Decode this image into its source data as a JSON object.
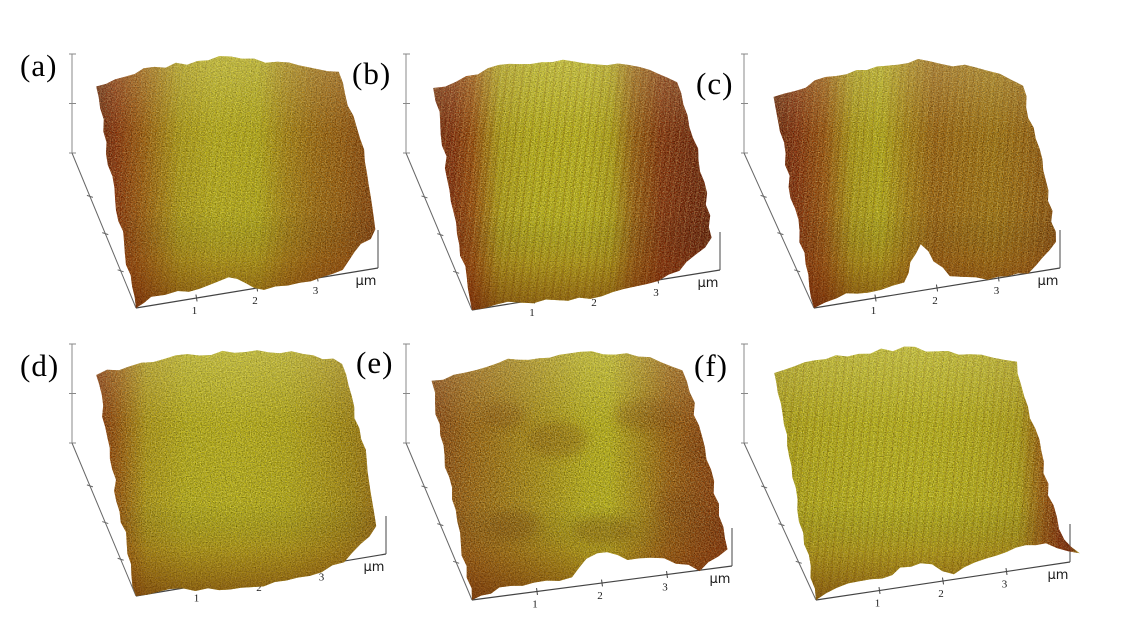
{
  "figure": {
    "description": "Six 3D AFM surface topography images labeled (a)-(f), arranged in a 2x3 grid, rendered with a gold/amber height colormap on a white background",
    "grid": {
      "rows": 2,
      "cols": 3
    }
  },
  "axes": {
    "x_tick_labels": [
      "1",
      "2",
      "3"
    ],
    "x_unit": "µm",
    "z_tick_count": 3,
    "z_tick_labels": []
  },
  "palette": {
    "background": "#ffffff",
    "deep_maroon": "#6e1a00",
    "dark_red": "#8f2600",
    "red_orange": "#a84a02",
    "brown": "#a86506",
    "olive": "#b99a0a",
    "yellow": "#cdc113",
    "bright_yellow": "#d2c913",
    "axis_line": "#555555",
    "text": "#111111"
  },
  "panels": [
    {
      "id": "a",
      "label": "(a)",
      "texture": "smooth",
      "stripes_opacity": 0.08,
      "description": "broad yellow plateau, dark red lower-left edge, orange right slope, notched front edge",
      "gradient": [
        [
          0,
          "#6e1a00"
        ],
        [
          0.07,
          "#962c00"
        ],
        [
          0.16,
          "#ab5a04"
        ],
        [
          0.3,
          "#c2ab0e"
        ],
        [
          0.42,
          "#cdc113"
        ],
        [
          0.58,
          "#c9bd10"
        ],
        [
          0.68,
          "#b98e0a"
        ],
        [
          0.78,
          "#ad6f06"
        ],
        [
          0.88,
          "#a55c04"
        ],
        [
          1,
          "#8f3c02"
        ]
      ]
    },
    {
      "id": "b",
      "label": "(b)",
      "texture": "striated",
      "stripes_opacity": 0.2,
      "description": "bright yellow striated plateau with dark red steep edges on both left and right sides",
      "gradient": [
        [
          0,
          "#7c1e00"
        ],
        [
          0.07,
          "#8f2600"
        ],
        [
          0.14,
          "#a84a02"
        ],
        [
          0.24,
          "#c2ae0e"
        ],
        [
          0.36,
          "#cdc411"
        ],
        [
          0.55,
          "#d0c713"
        ],
        [
          0.64,
          "#c4b30e"
        ],
        [
          0.72,
          "#a86206"
        ],
        [
          0.82,
          "#8f2a00"
        ],
        [
          0.92,
          "#7c1e00"
        ],
        [
          1,
          "#701a00"
        ]
      ]
    },
    {
      "id": "c",
      "label": "(c)",
      "texture": "striated",
      "stripes_opacity": 0.16,
      "description": "dark red left edge, yellow ridge, central brown groove with notched front edge, orange right side",
      "gradient": [
        [
          0,
          "#701a00"
        ],
        [
          0.08,
          "#8f2600"
        ],
        [
          0.18,
          "#a85204"
        ],
        [
          0.28,
          "#c0a90d"
        ],
        [
          0.38,
          "#c9bd10"
        ],
        [
          0.47,
          "#b98c0a"
        ],
        [
          0.57,
          "#a96506"
        ],
        [
          0.66,
          "#ad7007"
        ],
        [
          0.78,
          "#b07a08"
        ],
        [
          0.9,
          "#a86808"
        ],
        [
          1,
          "#964e04"
        ]
      ]
    },
    {
      "id": "d",
      "label": "(d)",
      "texture": "smooth",
      "stripes_opacity": 0,
      "description": "smooth uniform yellow plateau, dark red lower-left corner, gently sloping right side",
      "gradient": [
        [
          0,
          "#8f2a00"
        ],
        [
          0.08,
          "#a85a04"
        ],
        [
          0.18,
          "#c0a40d"
        ],
        [
          0.32,
          "#cabf11"
        ],
        [
          0.5,
          "#cdc312"
        ],
        [
          0.68,
          "#c8bb10"
        ],
        [
          0.82,
          "#bda30c"
        ],
        [
          0.92,
          "#b08c08"
        ],
        [
          1,
          "#a87406"
        ]
      ]
    },
    {
      "id": "e",
      "label": "(e)",
      "texture": "mottled",
      "stripes_opacity": 0,
      "description": "mottled orange-brown surface with dark patches and a bright yellow band right of centre, low dark red right corner",
      "gradient": [
        [
          0,
          "#93400a"
        ],
        [
          0.12,
          "#a8650a"
        ],
        [
          0.28,
          "#b4880c"
        ],
        [
          0.42,
          "#c0a80e"
        ],
        [
          0.52,
          "#cabf11"
        ],
        [
          0.6,
          "#ccc312"
        ],
        [
          0.7,
          "#b9940c"
        ],
        [
          0.8,
          "#a86206"
        ],
        [
          0.9,
          "#9a4604"
        ],
        [
          1,
          "#8f3000"
        ]
      ]
    },
    {
      "id": "f",
      "label": "(f)",
      "texture": "striated",
      "stripes_opacity": 0.16,
      "description": "almost entirely yellow striated surface with broad front dip, narrow dark red band at right edge and small yellow tip at lower right",
      "gradient": [
        [
          0,
          "#bfae0e"
        ],
        [
          0.12,
          "#c9bd10"
        ],
        [
          0.3,
          "#cdc513"
        ],
        [
          0.5,
          "#cfc713"
        ],
        [
          0.68,
          "#cabf11"
        ],
        [
          0.8,
          "#c2b00e"
        ],
        [
          0.88,
          "#a85a04"
        ],
        [
          0.94,
          "#8f2600"
        ],
        [
          0.97,
          "#7c1e00"
        ],
        [
          1,
          "#c9bd10"
        ]
      ]
    }
  ],
  "chart_data": {
    "type": "heatmap",
    "subtype": "3d_afm_surface_plots",
    "layout": "2x3 grid of perspective 3D surface renderings",
    "shared_axes": {
      "x_ticks": [
        1,
        2,
        3
      ],
      "x_unit": "µm",
      "x_range_estimate_um": [
        0,
        4
      ],
      "z_axis": "vertical height axis at upper left with 3 unlabeled ticks",
      "y_axis": "receding lateral axis at lower left with small unlabeled ticks"
    },
    "colormap": "dark maroon (low) -> red-orange -> brown -> olive -> bright yellow (high)",
    "panels": [
      {
        "label": "(a)",
        "surface": "broad yellow plateau, dark red lower-left edge, orange right slope"
      },
      {
        "label": "(b)",
        "surface": "bright yellow striated plateau, dark red edges both sides"
      },
      {
        "label": "(c)",
        "surface": "yellow ridge with central brown groove, dark red left edge"
      },
      {
        "label": "(d)",
        "surface": "smooth uniform yellow plateau, dark red lower-left corner"
      },
      {
        "label": "(e)",
        "surface": "mottled orange-brown with bright yellow vertical band"
      },
      {
        "label": "(f)",
        "surface": "nearly all-yellow striated surface, thin dark red right edge"
      }
    ]
  }
}
